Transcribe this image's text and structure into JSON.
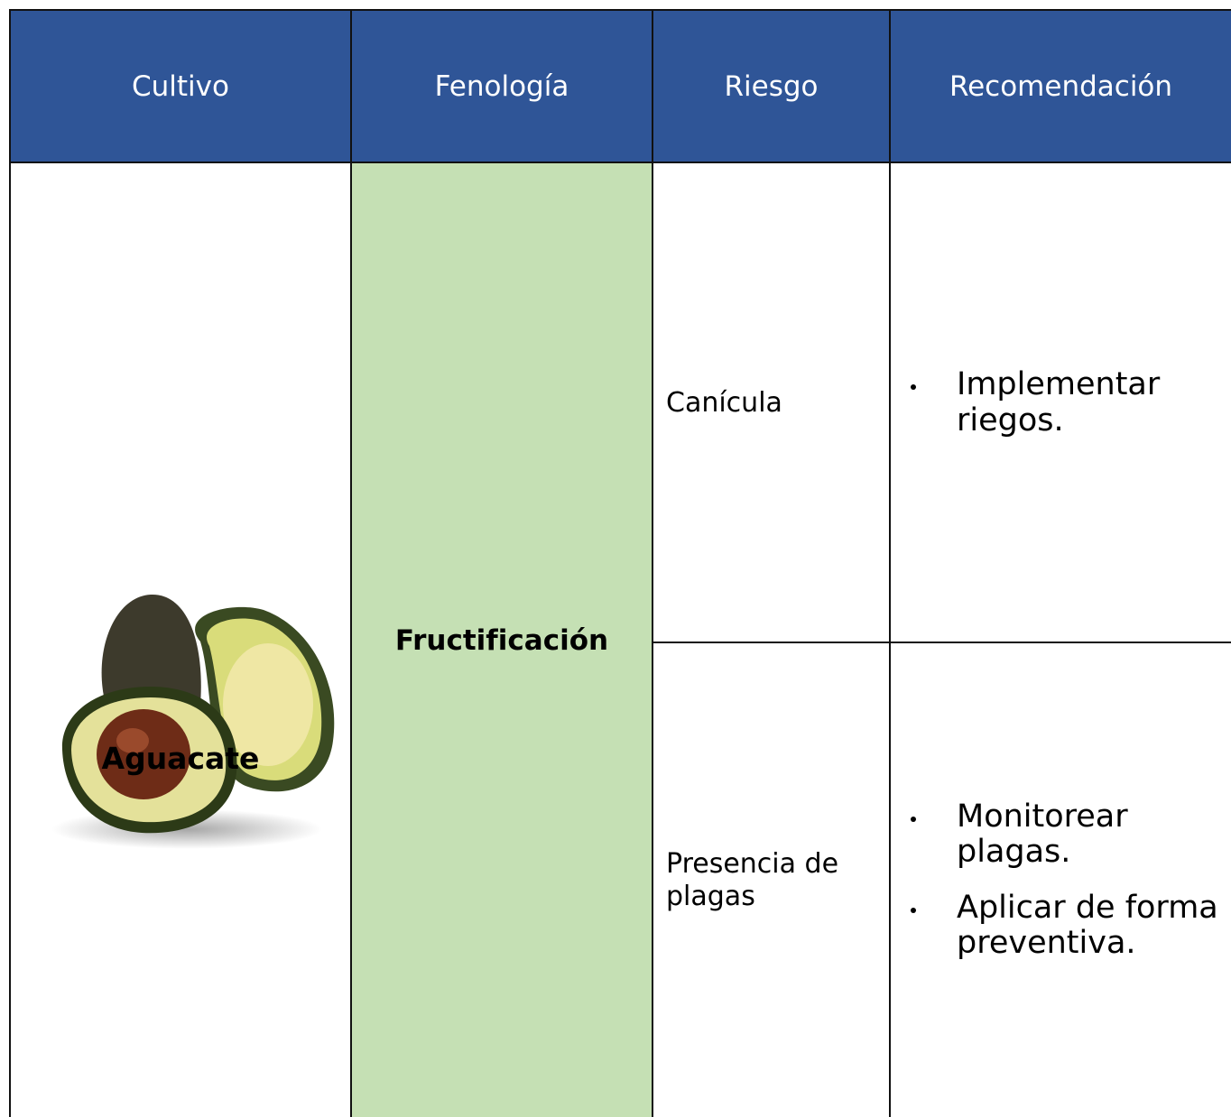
{
  "table": {
    "headers": [
      "Cultivo",
      "Fenología",
      "Riesgo",
      "Recomendación"
    ],
    "rows": [
      {
        "crop": "Aguacate",
        "phenology": "Fructificación",
        "risks": [
          {
            "risk": "Canícula",
            "recommendations": [
              "Implementar riegos."
            ]
          },
          {
            "risk": "Presencia de plagas",
            "recommendations": [
              "Monitorear plagas.",
              "Aplicar de forma preventiva."
            ]
          }
        ]
      }
    ]
  }
}
